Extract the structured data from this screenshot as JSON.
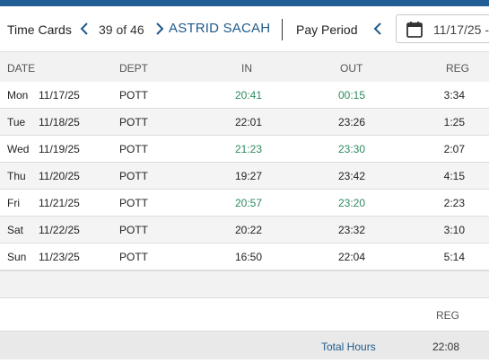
{
  "header": {
    "title": "Time Cards",
    "counter": "39 of 46",
    "employee_name": "ASTRID SACAH",
    "pay_period_label": "Pay Period",
    "pay_period_date": "11/17/25 -"
  },
  "icons": {
    "prev": "chevron-left-icon",
    "next": "chevron-right-icon",
    "calendar": "calendar-icon"
  },
  "colors": {
    "accent": "#1e5b8c",
    "top_bar": "#1f5d94",
    "edited_time": "#2e8a5e"
  },
  "table": {
    "columns": [
      "DATE",
      "DEPT",
      "IN",
      "OUT",
      "REG"
    ],
    "rows": [
      {
        "day": "Mon",
        "date": "11/17/25",
        "dept": "POTT",
        "in": "20:41",
        "out": "00:15",
        "reg": "3:34",
        "highlight": true
      },
      {
        "day": "Tue",
        "date": "11/18/25",
        "dept": "POTT",
        "in": "22:01",
        "out": "23:26",
        "reg": "1:25",
        "highlight": false
      },
      {
        "day": "Wed",
        "date": "11/19/25",
        "dept": "POTT",
        "in": "21:23",
        "out": "23:30",
        "reg": "2:07",
        "highlight": true
      },
      {
        "day": "Thu",
        "date": "11/20/25",
        "dept": "POTT",
        "in": "19:27",
        "out": "23:42",
        "reg": "4:15",
        "highlight": false
      },
      {
        "day": "Fri",
        "date": "11/21/25",
        "dept": "POTT",
        "in": "20:57",
        "out": "23:20",
        "reg": "2:23",
        "highlight": true
      },
      {
        "day": "Sat",
        "date": "11/22/25",
        "dept": "POTT",
        "in": "20:22",
        "out": "23:32",
        "reg": "3:10",
        "highlight": false
      },
      {
        "day": "Sun",
        "date": "11/23/25",
        "dept": "POTT",
        "in": "16:50",
        "out": "22:04",
        "reg": "5:14",
        "highlight": false
      }
    ]
  },
  "summary": {
    "reg_label": "REG",
    "total_label": "Total Hours",
    "total_reg": "22:08"
  }
}
